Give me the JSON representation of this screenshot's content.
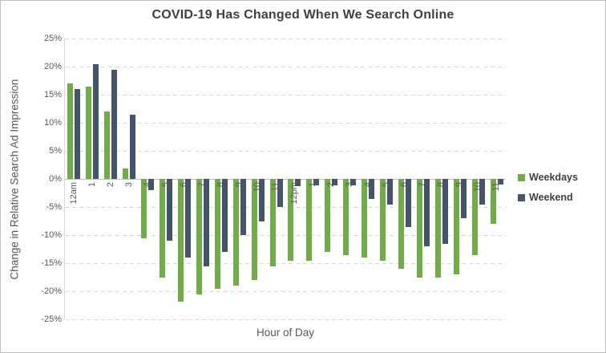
{
  "chart_data": {
    "type": "bar",
    "title": "COVID-19 Has Changed When We Search Online",
    "xlabel": "Hour of Day",
    "ylabel": "Change in Relative Search Ad Impression",
    "ylim": [
      -25,
      25
    ],
    "ytick_step": 5,
    "ytick_labels": [
      "25%",
      "20%",
      "15%",
      "10%",
      "5%",
      "0%",
      "-5%",
      "-10%",
      "-15%",
      "-20%",
      "-25%"
    ],
    "grid": "horizontal-dashed",
    "legend_position": "right",
    "categories": [
      "12am",
      "1",
      "2",
      "3",
      "4",
      "5",
      "6",
      "7",
      "8",
      "9",
      "10",
      "11",
      "12pm",
      "1",
      "2",
      "3",
      "4",
      "5",
      "6",
      "7",
      "8",
      "9",
      "10",
      "11"
    ],
    "series": [
      {
        "name": "Weekdays",
        "color": "#70AD47",
        "values": [
          17,
          16.5,
          12,
          1.8,
          -10.5,
          -17.5,
          -21.8,
          -20.5,
          -19.5,
          -19,
          -18,
          -15.5,
          -14.5,
          -14.5,
          -13,
          -13.5,
          -14,
          -14.5,
          -16,
          -17.5,
          -17.5,
          -17,
          -13.5,
          -8
        ]
      },
      {
        "name": "Weekend",
        "color": "#44546A",
        "values": [
          16,
          20.5,
          19.5,
          11.4,
          -2,
          -11,
          -14,
          -15.5,
          -13,
          -10,
          -7.5,
          -5,
          -1.3,
          -1.2,
          -1.1,
          -1.2,
          -3.5,
          -4.5,
          -8.5,
          -12,
          -11.5,
          -7,
          -4.5,
          -1
        ]
      }
    ]
  }
}
